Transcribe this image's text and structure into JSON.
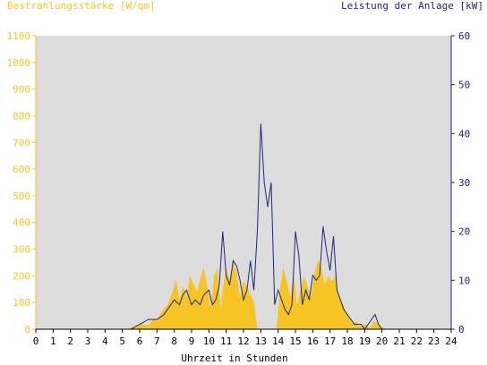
{
  "chart_data": {
    "type": "area",
    "left_axis_label": "Bestrahlungsstärke [W/qm]",
    "right_axis_label": "Leistung der Anlage [kW]",
    "xlabel": "Uhrzeit in Stunden",
    "xlim": [
      0,
      24
    ],
    "ylim_left": [
      0,
      1100
    ],
    "ylim_right": [
      0,
      60
    ],
    "x_ticks": [
      "0",
      "1",
      "2",
      "3",
      "4",
      "5",
      "6",
      "7",
      "8",
      "9",
      "10",
      "11",
      "12",
      "13",
      "14",
      "15",
      "16",
      "17",
      "18",
      "19",
      "20",
      "21",
      "22",
      "23",
      "24"
    ],
    "y_ticks_left": [
      "0",
      "100",
      "200",
      "300",
      "400",
      "500",
      "600",
      "700",
      "800",
      "900",
      "1000",
      "1100"
    ],
    "y_ticks_right": [
      "0",
      "10",
      "20",
      "30",
      "40",
      "50",
      "60"
    ],
    "grid": false,
    "series": [
      {
        "name": "Bestrahlungsstärke [W/qm]",
        "axis": "left",
        "kind": "area",
        "x": [
          0,
          5.3,
          5.6,
          6.0,
          6.5,
          6.8,
          7.0,
          7.3,
          7.6,
          7.9,
          8.1,
          8.3,
          8.5,
          8.7,
          8.9,
          9.1,
          9.3,
          9.5,
          9.7,
          9.9,
          10.1,
          10.3,
          10.5,
          10.7,
          10.8,
          11.0,
          11.2,
          11.4,
          11.6,
          11.8,
          12.0,
          12.2,
          12.4,
          12.6,
          12.8,
          13.0,
          13.2,
          13.4,
          13.5,
          13.7,
          13.9,
          14.1,
          14.3,
          14.5,
          14.7,
          14.9,
          15.1,
          15.3,
          15.5,
          15.7,
          15.9,
          16.1,
          16.3,
          16.5,
          16.7,
          16.9,
          17.1,
          17.3,
          17.5,
          17.7,
          17.9,
          18.1,
          18.3,
          18.5,
          18.7,
          18.9,
          19.1,
          19.3,
          19.5,
          19.7,
          19.9,
          20.1,
          20.3,
          24
        ],
        "y": [
          0,
          0,
          10,
          20,
          15,
          40,
          30,
          70,
          90,
          140,
          190,
          110,
          160,
          120,
          200,
          170,
          140,
          190,
          230,
          160,
          80,
          200,
          230,
          70,
          150,
          230,
          180,
          260,
          210,
          120,
          180,
          160,
          130,
          100,
          0,
          0,
          0,
          0,
          0,
          0,
          0,
          150,
          230,
          180,
          120,
          200,
          90,
          150,
          200,
          160,
          120,
          210,
          260,
          230,
          170,
          200,
          180,
          200,
          120,
          100,
          70,
          40,
          20,
          30,
          10,
          15,
          20,
          0,
          30,
          25,
          10,
          5,
          0,
          0
        ]
      },
      {
        "name": "Leistung der Anlage [kW]",
        "axis": "right",
        "kind": "line",
        "x": [
          0,
          5.5,
          6.0,
          6.5,
          7.0,
          7.4,
          7.8,
          8.0,
          8.3,
          8.5,
          8.7,
          9.0,
          9.2,
          9.5,
          9.7,
          10.0,
          10.2,
          10.4,
          10.6,
          10.8,
          11.0,
          11.2,
          11.4,
          11.6,
          11.8,
          12.0,
          12.2,
          12.4,
          12.6,
          12.8,
          13.0,
          13.2,
          13.4,
          13.6,
          13.8,
          14.0,
          14.2,
          14.4,
          14.6,
          14.8,
          15.0,
          15.2,
          15.4,
          15.6,
          15.8,
          16.0,
          16.2,
          16.4,
          16.6,
          16.8,
          17.0,
          17.2,
          17.4,
          17.6,
          17.8,
          18.0,
          18.2,
          18.4,
          18.6,
          18.8,
          19.0,
          19.2,
          19.4,
          19.6,
          19.8,
          20.0,
          24
        ],
        "y": [
          0,
          0,
          1,
          2,
          2,
          3,
          5,
          6,
          5,
          7,
          8,
          5,
          6,
          5,
          7,
          8,
          5,
          6,
          9,
          20,
          11,
          9,
          14,
          13,
          10,
          6,
          8,
          14,
          8,
          20,
          42,
          30,
          25,
          30,
          5,
          8,
          6,
          4,
          3,
          5,
          20,
          15,
          5,
          8,
          6,
          11,
          10,
          11,
          21,
          16,
          12,
          19,
          8,
          6,
          4,
          3,
          2,
          1,
          1,
          1,
          0,
          1,
          2,
          3,
          1,
          0,
          0
        ]
      }
    ]
  }
}
